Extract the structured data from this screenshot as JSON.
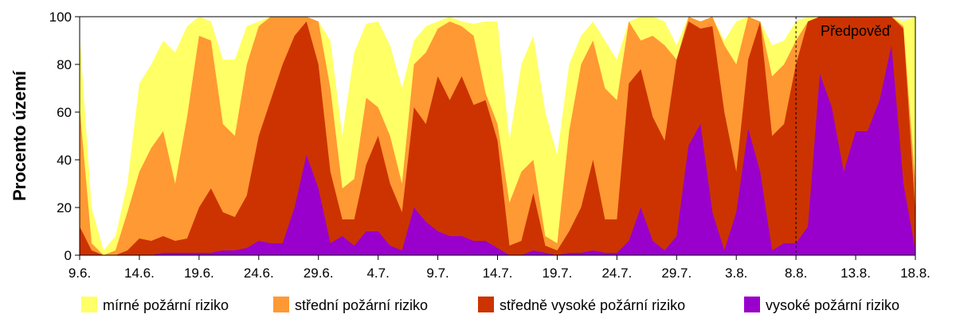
{
  "chart_data": {
    "type": "area",
    "stacking": "cumulative percent",
    "ylabel": "Procento území",
    "ylim": [
      0,
      100
    ],
    "yticks": [
      0,
      20,
      40,
      60,
      80,
      100
    ],
    "x_tick_labels": [
      "9.6.",
      "14.6.",
      "19.6.",
      "24.6.",
      "29.6.",
      "4.7.",
      "9.7.",
      "14.7.",
      "19.7.",
      "24.7.",
      "29.7.",
      "3.8.",
      "8.8.",
      "13.8.",
      "18.8."
    ],
    "x_tick_step_days": 5,
    "grid": false,
    "legend_position": "bottom",
    "forecast_annotation": {
      "text": "Předpověď",
      "start_day_index": 60,
      "end_day_index": 70
    },
    "x": [
      "9.6.",
      "10.6.",
      "11.6.",
      "12.6.",
      "13.6.",
      "14.6.",
      "15.6.",
      "16.6.",
      "17.6.",
      "18.6.",
      "19.6.",
      "20.6.",
      "21.6.",
      "22.6.",
      "23.6.",
      "24.6.",
      "25.6.",
      "26.6.",
      "27.6.",
      "28.6.",
      "29.6.",
      "30.6.",
      "1.7.",
      "2.7.",
      "3.7.",
      "4.7.",
      "5.7.",
      "6.7.",
      "7.7.",
      "8.7.",
      "9.7.",
      "10.7.",
      "11.7.",
      "12.7.",
      "13.7.",
      "14.7.",
      "15.7.",
      "16.7.",
      "17.7.",
      "18.7.",
      "19.7.",
      "20.7.",
      "21.7.",
      "22.7.",
      "23.7.",
      "24.7.",
      "25.7.",
      "26.7.",
      "27.7.",
      "28.7.",
      "29.7.",
      "30.7.",
      "31.7.",
      "1.8.",
      "2.8.",
      "3.8.",
      "4.8.",
      "5.8.",
      "6.8.",
      "7.8.",
      "8.8.",
      "9.8.",
      "10.8.",
      "11.8.",
      "12.8.",
      "13.8.",
      "14.8.",
      "15.8.",
      "16.8.",
      "17.8.",
      "18.8."
    ],
    "series": [
      {
        "name": "mírné požární riziko",
        "color": "#ffff66",
        "values": [
          92,
          20,
          2,
          8,
          30,
          72,
          80,
          90,
          85,
          96,
          100,
          98,
          82,
          82,
          96,
          98,
          100,
          100,
          100,
          100,
          98,
          90,
          50,
          85,
          97,
          98,
          88,
          70,
          90,
          96,
          98,
          100,
          98,
          97,
          98,
          98,
          48,
          80,
          92,
          60,
          42,
          80,
          92,
          98,
          90,
          82,
          98,
          100,
          100,
          98,
          88,
          100,
          98,
          100,
          90,
          98,
          100,
          98,
          88,
          90,
          98,
          100,
          100,
          100,
          100,
          100,
          100,
          100,
          100,
          98,
          100
        ]
      },
      {
        "name": "střední požární riziko",
        "color": "#ff9933",
        "values": [
          62,
          5,
          0,
          2,
          18,
          35,
          45,
          52,
          30,
          58,
          92,
          90,
          55,
          50,
          80,
          96,
          100,
          100,
          100,
          100,
          98,
          70,
          28,
          32,
          66,
          62,
          50,
          30,
          80,
          85,
          95,
          98,
          96,
          92,
          68,
          55,
          22,
          35,
          40,
          8,
          5,
          52,
          80,
          90,
          70,
          65,
          98,
          90,
          92,
          88,
          82,
          100,
          98,
          100,
          88,
          80,
          100,
          98,
          75,
          80,
          90,
          98,
          100,
          100,
          100,
          100,
          100,
          100,
          100,
          96,
          30
        ]
      },
      {
        "name": "středně vysoké požární riziko",
        "color": "#cc3300",
        "values": [
          12,
          2,
          0,
          0,
          2,
          7,
          6,
          8,
          6,
          7,
          20,
          28,
          18,
          16,
          25,
          50,
          65,
          80,
          92,
          98,
          80,
          35,
          15,
          15,
          38,
          50,
          30,
          18,
          62,
          55,
          75,
          65,
          75,
          63,
          65,
          48,
          4,
          6,
          26,
          4,
          2,
          10,
          20,
          40,
          15,
          15,
          72,
          78,
          58,
          48,
          82,
          98,
          95,
          96,
          60,
          35,
          82,
          98,
          50,
          55,
          80,
          98,
          100,
          100,
          100,
          100,
          100,
          100,
          100,
          95,
          18
        ]
      },
      {
        "name": "vysoké požární riziko",
        "color": "#9900cc",
        "values": [
          0,
          0,
          0,
          0,
          0,
          0,
          0,
          1,
          1,
          1,
          1,
          1,
          2,
          2,
          3,
          6,
          5,
          5,
          20,
          42,
          28,
          5,
          8,
          4,
          10,
          10,
          4,
          2,
          20,
          14,
          10,
          8,
          8,
          6,
          6,
          3,
          0,
          0,
          2,
          1,
          0,
          1,
          1,
          2,
          1,
          1,
          6,
          20,
          6,
          2,
          8,
          46,
          55,
          18,
          2,
          18,
          53,
          35,
          2,
          5,
          5,
          12,
          76,
          62,
          35,
          52,
          52,
          65,
          88,
          30,
          2
        ]
      }
    ]
  }
}
